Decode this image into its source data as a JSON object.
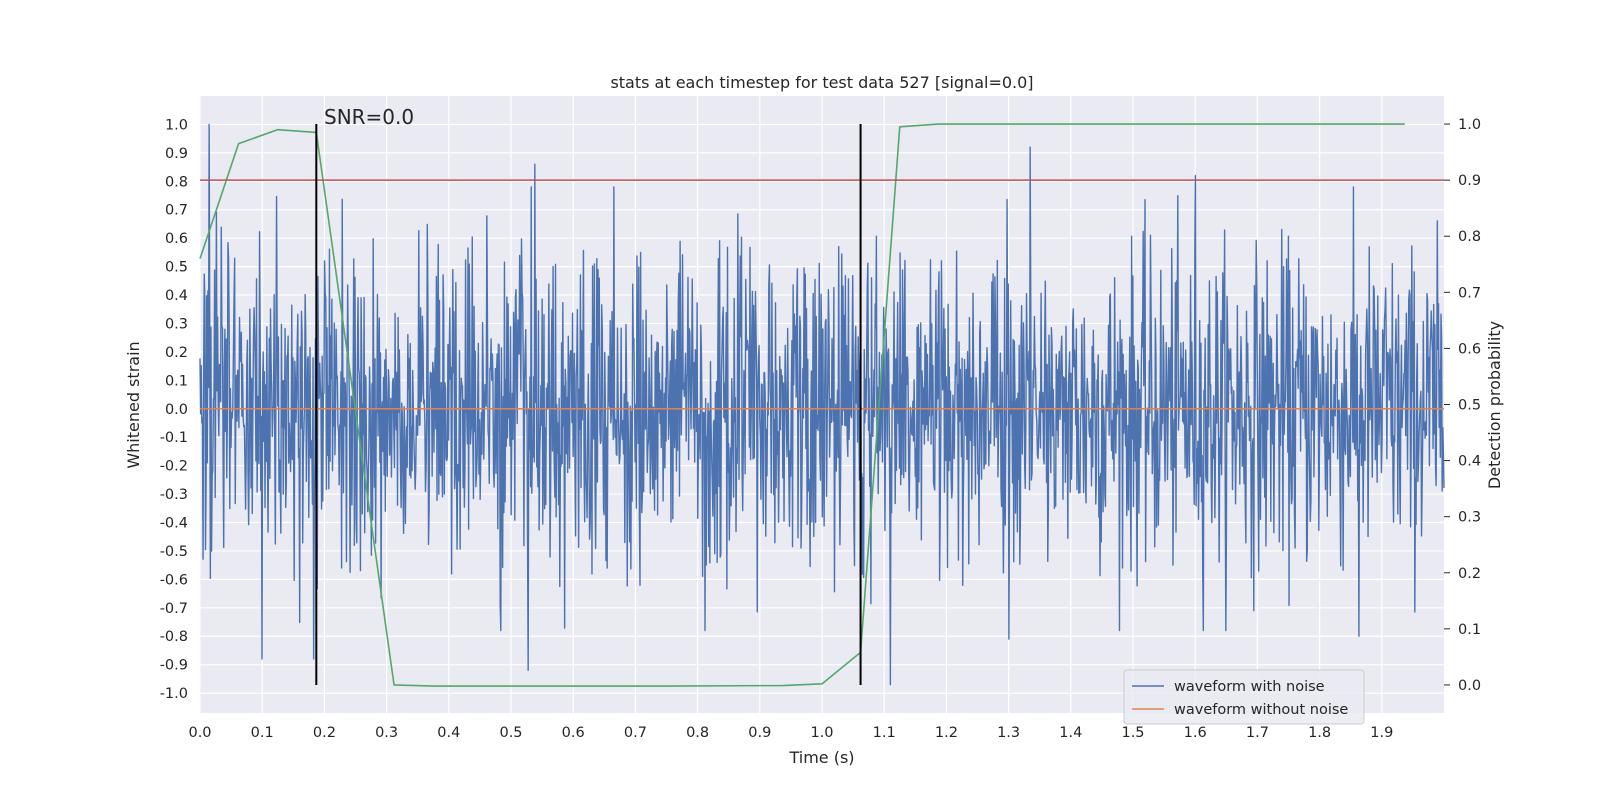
{
  "chart_data": {
    "type": "line",
    "title": "stats at each timestep for test data 527 [signal=0.0]",
    "xlabel": "Time (s)",
    "ylabel": "Whitened strain",
    "y2label": "Detection probability",
    "annotation": "SNR=0.0",
    "xlim": [
      0.0,
      2.0
    ],
    "ylim": [
      -1.07,
      1.1
    ],
    "y2lim": [
      -0.05,
      1.05
    ],
    "x_ticks": [
      "0.0",
      "0.1",
      "0.2",
      "0.3",
      "0.4",
      "0.5",
      "0.6",
      "0.7",
      "0.8",
      "0.9",
      "1.0",
      "1.1",
      "1.2",
      "1.3",
      "1.4",
      "1.5",
      "1.6",
      "1.7",
      "1.8",
      "1.9"
    ],
    "y_ticks": [
      "1.0",
      "0.9",
      "0.8",
      "0.7",
      "0.6",
      "0.5",
      "0.4",
      "0.3",
      "0.2",
      "0.1",
      "0.0",
      "-0.1",
      "-0.2",
      "-0.3",
      "-0.4",
      "-0.5",
      "-0.6",
      "-0.7",
      "-0.8",
      "-0.9",
      "-1.0"
    ],
    "y2_ticks": [
      "1.0",
      "0.9",
      "0.8",
      "0.7",
      "0.6",
      "0.5",
      "0.4",
      "0.3",
      "0.2",
      "0.1",
      "0.0"
    ],
    "grid": true,
    "legend_position": "lower-right",
    "threshold": {
      "y2": 0.9,
      "color": "#c44e52"
    },
    "markers": {
      "x": [
        0.187,
        1.062
      ],
      "y2_range": [
        0.0,
        1.0
      ],
      "color": "#000000"
    },
    "series": [
      {
        "name": "waveform with noise",
        "color": "#4c72b0",
        "axis": "left",
        "kind": "noise",
        "x_range": [
          0.0,
          2.0
        ],
        "std": 0.27,
        "samples": 2048,
        "peaks": [
          [
            0.015,
            1.0
          ],
          [
            0.538,
            0.86
          ],
          [
            1.335,
            0.92
          ],
          [
            1.6,
            0.82
          ],
          [
            0.1,
            -0.88
          ],
          [
            0.528,
            -0.92
          ],
          [
            1.11,
            -0.97
          ],
          [
            1.3,
            -0.81
          ],
          [
            1.863,
            -0.8
          ],
          [
            0.183,
            -0.88
          ]
        ]
      },
      {
        "name": "waveform without noise",
        "color": "#dd8452",
        "axis": "left",
        "x": [
          0.0,
          2.0
        ],
        "y": [
          0.0,
          0.0
        ]
      },
      {
        "name": "Detection probability",
        "color": "#55a868",
        "axis": "right",
        "x": [
          0.0,
          0.062,
          0.125,
          0.187,
          0.312,
          0.375,
          0.5,
          0.75,
          0.937,
          1.0,
          1.062,
          1.125,
          1.187,
          1.5,
          1.937
        ],
        "y": [
          0.76,
          0.965,
          0.99,
          0.985,
          0.0,
          -0.002,
          -0.002,
          -0.002,
          -0.001,
          0.002,
          0.058,
          0.995,
          1.0,
          1.0,
          1.0
        ]
      }
    ]
  }
}
